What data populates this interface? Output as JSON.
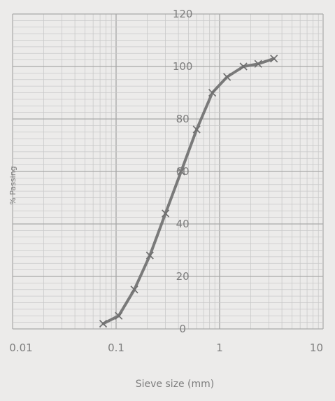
{
  "chart_data": {
    "type": "line",
    "title": "",
    "xlabel": "Sieve size (mm)",
    "ylabel": "% Passing",
    "x_scale": "log",
    "xlim": [
      0.01,
      10
    ],
    "ylim": [
      0,
      120
    ],
    "grid": true,
    "x_tick_labels": [
      "0.01",
      "0.1",
      "1",
      "10"
    ],
    "x_tick_values": [
      0.01,
      0.1,
      1,
      10
    ],
    "y_tick_labels": [
      "0",
      "20",
      "40",
      "60",
      "80",
      "100",
      "120"
    ],
    "y_tick_values": [
      0,
      20,
      40,
      60,
      80,
      100,
      120
    ],
    "series": [
      {
        "x": [
          0.075,
          0.106,
          0.15,
          0.212,
          0.3,
          0.425,
          0.6,
          0.85,
          1.18,
          1.7,
          2.36,
          3.35
        ],
        "values": [
          2,
          5,
          15,
          28,
          44,
          60,
          76,
          90,
          96,
          100,
          101,
          103
        ]
      }
    ]
  }
}
